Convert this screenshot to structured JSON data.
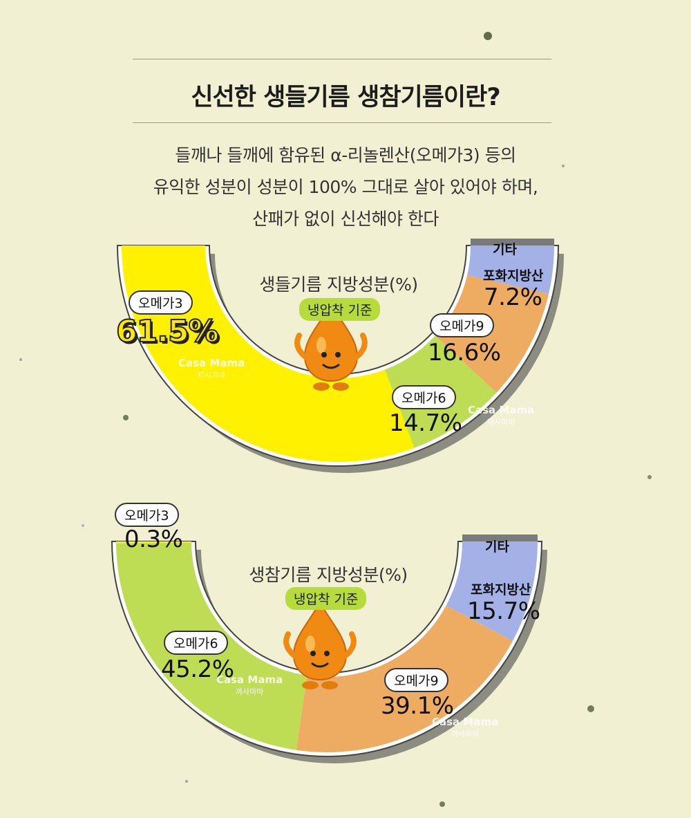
{
  "title": "신선한 생들기름 생참기름이란?",
  "intro_lines": [
    "들깨나 들깨에 함유된 α-리놀렌산(오메가3) 등의",
    "유익한 성분이 성분이 100% 그대로 살아 있어야 하며,",
    "산패가 없이 신선해야 한다"
  ],
  "watermark": {
    "brand": "Casa Mama",
    "brand_kr": "까사마마"
  },
  "colors": {
    "omega3": "#fff100",
    "omega6": "#bfdc55",
    "omega9": "#eeab62",
    "saturated": "#a3b1e6",
    "other": "#7a7a7a",
    "badge": "#b6dc3c"
  },
  "chart_data": [
    {
      "type": "semi-donut",
      "title": "생들기름 지방성분(%)",
      "subtitle": "냉압착 기준",
      "categories": [
        "오메가3",
        "오메가6",
        "오메가9",
        "포화지방산",
        "기타"
      ],
      "values": [
        61.5,
        14.7,
        16.6,
        7.2,
        0
      ],
      "value_labels": [
        "61.5%",
        "14.7%",
        "16.6%",
        "7.2%",
        ""
      ]
    },
    {
      "type": "semi-donut",
      "title": "생참기름 지방성분(%)",
      "subtitle": "냉압착 기준",
      "categories": [
        "오메가3",
        "오메가6",
        "오메가9",
        "포화지방산",
        "기타"
      ],
      "values": [
        0.3,
        45.2,
        39.1,
        15.7,
        0
      ],
      "value_labels": [
        "0.3%",
        "45.2%",
        "39.1%",
        "15.7%",
        ""
      ]
    }
  ]
}
